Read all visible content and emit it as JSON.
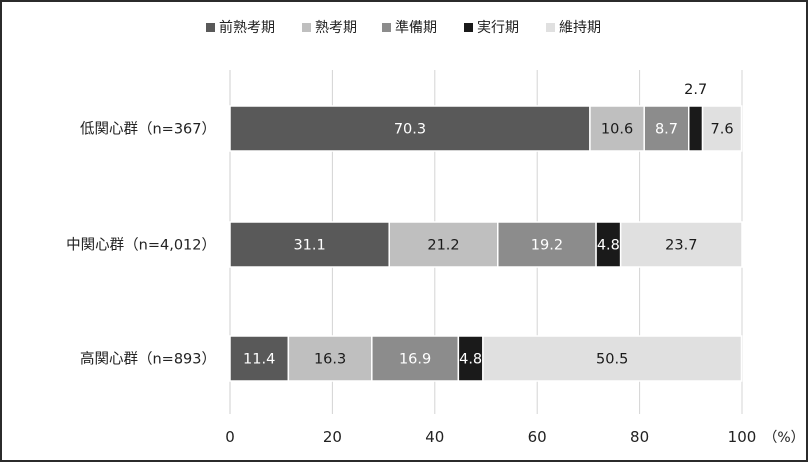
{
  "chart_data": {
    "type": "bar",
    "orientation": "horizontal",
    "stacked": true,
    "categories": [
      "低関心群（n=367）",
      "中関心群（n=4,012）",
      "高関心群（n=893）"
    ],
    "series": [
      {
        "name": "前熟考期",
        "color": "#595959",
        "values": [
          70.3,
          31.1,
          11.4
        ],
        "labels": [
          "70.3",
          "31.1",
          "11.4"
        ]
      },
      {
        "name": "熟考期",
        "color": "#bfbfbf",
        "values": [
          10.6,
          21.2,
          16.3
        ],
        "labels": [
          "10.6",
          "21.2",
          "16.3"
        ]
      },
      {
        "name": "準備期",
        "color": "#8c8c8c",
        "values": [
          8.7,
          19.2,
          16.9
        ],
        "labels": [
          "8.7",
          "19.2",
          "16.9"
        ]
      },
      {
        "name": "実行期",
        "color": "#1a1a1a",
        "values": [
          2.7,
          4.8,
          4.8
        ],
        "labels": [
          "2.7",
          "4.8",
          "4.8"
        ]
      },
      {
        "name": "維持期",
        "color": "#e0e0e0",
        "values": [
          7.6,
          23.7,
          50.5
        ],
        "labels": [
          "7.6",
          "23.7",
          "50.5"
        ]
      }
    ],
    "xlim": [
      0,
      100
    ],
    "xticks": [
      "0",
      "20",
      "40",
      "60",
      "80",
      "100"
    ],
    "xunit": "（%）",
    "legend_position": "top",
    "grid": "vertical",
    "title": "",
    "xlabel": "",
    "ylabel": ""
  }
}
